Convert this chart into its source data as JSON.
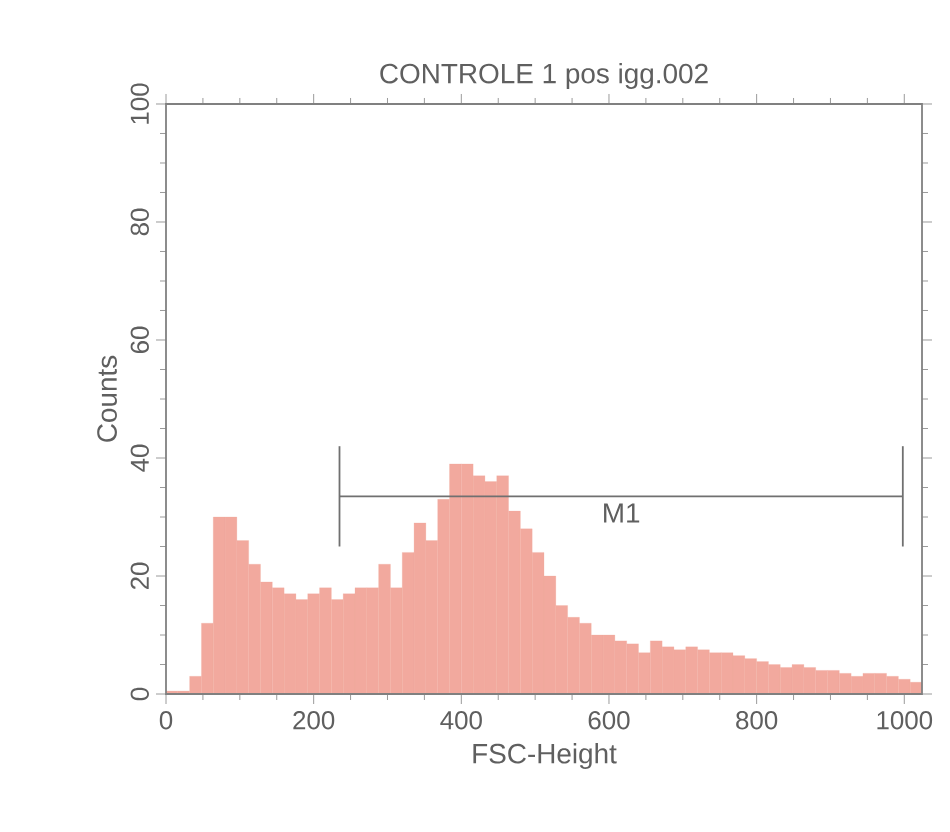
{
  "chart_data": {
    "type": "histogram",
    "title": "CONTROLE 1 pos igg.002",
    "xlabel": "FSC-Height",
    "ylabel": "Counts",
    "bins": [
      0,
      16,
      32,
      48,
      64,
      80,
      96,
      112,
      128,
      144,
      160,
      176,
      192,
      208,
      224,
      240,
      256,
      272,
      288,
      304,
      320,
      336,
      352,
      368,
      384,
      400,
      416,
      432,
      448,
      464,
      480,
      496,
      512,
      528,
      544,
      560,
      576,
      592,
      608,
      624,
      640,
      656,
      672,
      688,
      704,
      720,
      736,
      752,
      768,
      784,
      800,
      816,
      832,
      848,
      864,
      880,
      896,
      912,
      928,
      944,
      960,
      976,
      992,
      1008,
      1024
    ],
    "values": [
      0.5,
      0.5,
      3,
      12,
      30,
      30,
      26,
      22,
      19,
      18,
      17,
      16,
      17,
      18,
      16,
      17,
      18,
      18,
      22,
      18,
      24,
      29,
      26,
      33,
      39,
      39,
      37,
      36,
      37,
      31,
      28,
      24,
      20,
      15,
      13,
      12,
      10,
      10,
      9,
      8.5,
      7,
      9,
      8,
      7.5,
      8,
      7.5,
      7,
      7,
      6.5,
      6,
      5.5,
      5,
      4.5,
      5,
      4.5,
      4,
      4,
      3.5,
      3,
      3.5,
      3.5,
      3,
      2.5,
      2
    ],
    "color": "#f2a99e",
    "series": [
      {
        "type": "line",
        "name": "M1",
        "color": "#707070",
        "x": [
          235,
          998
        ],
        "values": [
          33.5,
          33.5
        ],
        "errors": [
          8.5,
          8.5
        ]
      }
    ],
    "xlim": [
      0,
      1024
    ],
    "ylim": [
      0,
      100
    ],
    "xticks": [
      0,
      200,
      400,
      600,
      800,
      1000
    ],
    "yticks": [
      0,
      20,
      40,
      60,
      80,
      100
    ]
  }
}
